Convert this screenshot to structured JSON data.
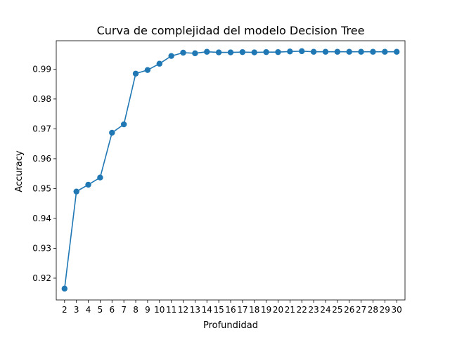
{
  "chart_data": {
    "type": "line",
    "title": "Curva de complejidad del modelo Decision Tree",
    "xlabel": "Profundidad",
    "ylabel": "Accuracy",
    "x": [
      2,
      3,
      4,
      5,
      6,
      7,
      8,
      9,
      10,
      11,
      12,
      13,
      14,
      15,
      16,
      17,
      18,
      19,
      20,
      21,
      22,
      23,
      24,
      25,
      26,
      27,
      28,
      29,
      30
    ],
    "xticks": [
      "2",
      "3",
      "4",
      "5",
      "6",
      "7",
      "8",
      "9",
      "10",
      "11",
      "12",
      "13",
      "14",
      "15",
      "16",
      "17",
      "18",
      "19",
      "20",
      "21",
      "22",
      "23",
      "24",
      "25",
      "26",
      "27",
      "28",
      "29",
      "30"
    ],
    "yticks": [
      "0.92",
      "0.93",
      "0.94",
      "0.95",
      "0.96",
      "0.97",
      "0.98",
      "0.99"
    ],
    "ytick_values": [
      0.92,
      0.93,
      0.94,
      0.95,
      0.96,
      0.97,
      0.98,
      0.99
    ],
    "xlim": [
      1.3,
      30.7
    ],
    "ylim": [
      0.9127,
      0.9995
    ],
    "grid": false,
    "series": [
      {
        "color": "#1f77b4",
        "marker": "circle",
        "values": [
          0.9165,
          0.949,
          0.9513,
          0.9537,
          0.9687,
          0.9715,
          0.9885,
          0.9897,
          0.9918,
          0.9944,
          0.9955,
          0.9953,
          0.9958,
          0.9956,
          0.9956,
          0.9957,
          0.9956,
          0.9957,
          0.9957,
          0.9959,
          0.996,
          0.9958,
          0.9958,
          0.9958,
          0.9958,
          0.9958,
          0.9958,
          0.9958,
          0.9958
        ]
      }
    ]
  }
}
